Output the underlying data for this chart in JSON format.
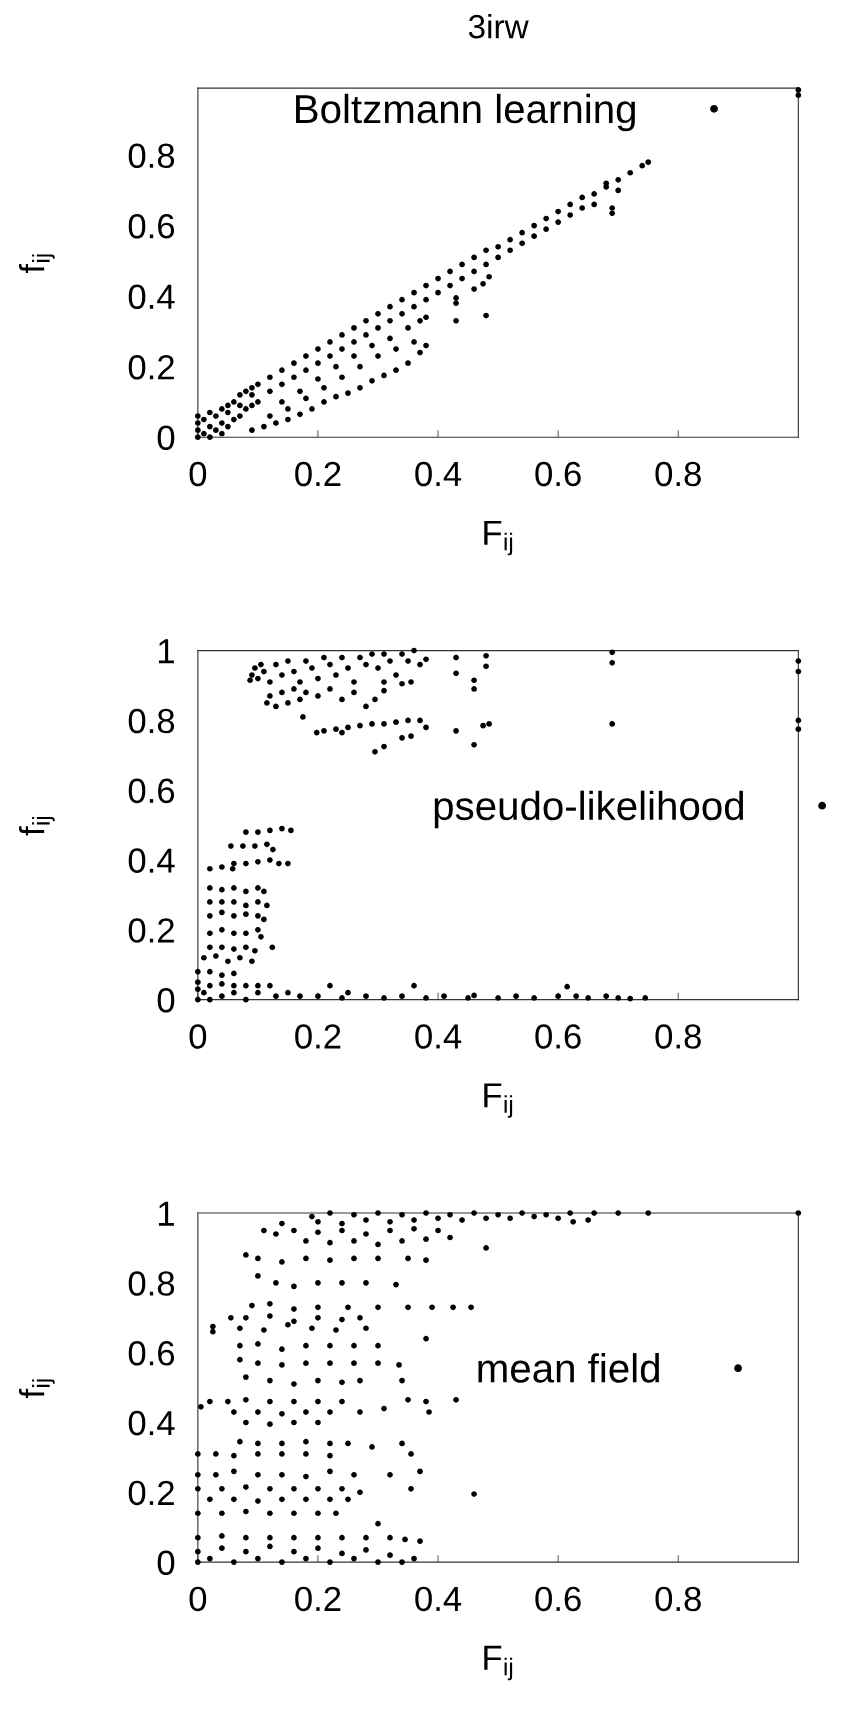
{
  "chart_data": [
    {
      "type": "scatter",
      "title": "3irw",
      "xlabel": "F$_{ij}$",
      "ylabel": "f$_{ij}$",
      "xlim": [
        0,
        1
      ],
      "ylim": [
        0,
        0.99
      ],
      "xticks": [
        0,
        0.2,
        0.4,
        0.6,
        0.8
      ],
      "yticks": [
        0,
        0.2,
        0.4,
        0.6,
        0.8
      ],
      "legend": "top right",
      "marker": "circle",
      "series": [
        {
          "name": "Boltzmann learning",
          "color": "#000000",
          "x": [
            0,
            0,
            0,
            0,
            0.01,
            0.01,
            0.02,
            0.02,
            0.02,
            0.03,
            0.03,
            0.04,
            0.04,
            0.04,
            0.05,
            0.05,
            0.05,
            0.06,
            0.06,
            0.07,
            0.07,
            0.07,
            0.08,
            0.08,
            0.09,
            0.09,
            0.09,
            0.1,
            0.1,
            0.12,
            0.12,
            0.14,
            0.14,
            0.16,
            0.16,
            0.18,
            0.18,
            0.2,
            0.2,
            0.22,
            0.22,
            0.24,
            0.24,
            0.26,
            0.26,
            0.28,
            0.28,
            0.3,
            0.3,
            0.32,
            0.32,
            0.34,
            0.34,
            0.36,
            0.36,
            0.38,
            0.38,
            0.4,
            0.4,
            0.42,
            0.42,
            0.44,
            0.44,
            0.46,
            0.46,
            0.48,
            0.48,
            0.5,
            0.5,
            0.52,
            0.52,
            0.54,
            0.54,
            0.56,
            0.56,
            0.58,
            0.58,
            0.6,
            0.6,
            0.62,
            0.62,
            0.64,
            0.64,
            0.66,
            0.66,
            0.68,
            0.7,
            0.72,
            0.74,
            0.75,
            0.09,
            0.11,
            0.13,
            0.15,
            0.17,
            0.19,
            0.21,
            0.23,
            0.25,
            0.27,
            0.29,
            0.31,
            0.33,
            0.35,
            0.37,
            0.38,
            0.12,
            0.15,
            0.18,
            0.21,
            0.24,
            0.27,
            0.3,
            0.33,
            0.36,
            0.14,
            0.17,
            0.2,
            0.23,
            0.26,
            0.29,
            0.32,
            0.35,
            0.37,
            0.38,
            0.68,
            0.69,
            0.69,
            0.7,
            0.43,
            0.43,
            0.43,
            0.46,
            0.475,
            0.485,
            0.48,
            1,
            1
          ],
          "values": [
            0,
            0.02,
            0.04,
            0.06,
            0.01,
            0.05,
            0,
            0.03,
            0.07,
            0.02,
            0.06,
            0.01,
            0.04,
            0.08,
            0.03,
            0.07,
            0.09,
            0.05,
            0.1,
            0.06,
            0.09,
            0.12,
            0.08,
            0.13,
            0.09,
            0.12,
            0.14,
            0.1,
            0.15,
            0.13,
            0.17,
            0.15,
            0.19,
            0.17,
            0.21,
            0.19,
            0.23,
            0.21,
            0.25,
            0.23,
            0.27,
            0.25,
            0.29,
            0.27,
            0.31,
            0.29,
            0.33,
            0.31,
            0.35,
            0.33,
            0.37,
            0.35,
            0.39,
            0.37,
            0.41,
            0.39,
            0.43,
            0.41,
            0.45,
            0.43,
            0.47,
            0.45,
            0.49,
            0.47,
            0.51,
            0.49,
            0.53,
            0.51,
            0.54,
            0.53,
            0.56,
            0.55,
            0.58,
            0.57,
            0.6,
            0.59,
            0.62,
            0.61,
            0.64,
            0.63,
            0.66,
            0.65,
            0.68,
            0.66,
            0.69,
            0.71,
            0.73,
            0.75,
            0.77,
            0.78,
            0.02,
            0.03,
            0.04,
            0.05,
            0.065,
            0.08,
            0.1,
            0.115,
            0.125,
            0.14,
            0.16,
            0.175,
            0.19,
            0.21,
            0.24,
            0.26,
            0.06,
            0.08,
            0.11,
            0.14,
            0.17,
            0.2,
            0.23,
            0.25,
            0.27,
            0.1,
            0.13,
            0.165,
            0.2,
            0.23,
            0.26,
            0.28,
            0.31,
            0.33,
            0.34,
            0.72,
            0.65,
            0.635,
            0.7,
            0.395,
            0.38,
            0.33,
            0.42,
            0.435,
            0.455,
            0.345,
            0.985,
            0.97
          ]
        }
      ]
    },
    {
      "type": "scatter",
      "xlabel": "F$_{ij}$",
      "ylabel": "f$_{ij}$",
      "xlim": [
        0,
        1
      ],
      "ylim": [
        0,
        1
      ],
      "xticks": [
        0,
        0.2,
        0.4,
        0.6,
        0.8
      ],
      "yticks": [
        0,
        0.2,
        0.4,
        0.6,
        0.8,
        1
      ],
      "legend": "right",
      "marker": "circle",
      "series": [
        {
          "name": "pseudo-likelihood",
          "color": "#000000",
          "x": [
            0.087,
            0.09,
            0.095,
            0.1,
            0.105,
            0.11,
            0.12,
            0.13,
            0.14,
            0.15,
            0.16,
            0.17,
            0.18,
            0.19,
            0.2,
            0.21,
            0.22,
            0.23,
            0.24,
            0.25,
            0.26,
            0.27,
            0.28,
            0.29,
            0.3,
            0.31,
            0.32,
            0.33,
            0.34,
            0.35,
            0.36,
            0.37,
            0.38,
            0.355,
            0.31,
            0.115,
            0.12,
            0.13,
            0.14,
            0.15,
            0.16,
            0.17,
            0.18,
            0.2,
            0.22,
            0.24,
            0.26,
            0.175,
            0.28,
            0.295,
            0.31,
            0.34,
            0.198,
            0.21,
            0.23,
            0.25,
            0.27,
            0.29,
            0.31,
            0.33,
            0.35,
            0.37,
            0.24,
            0.38,
            0.295,
            0.31,
            0.34,
            0.355,
            0.43,
            0.43,
            0.46,
            0.46,
            0.48,
            0.48,
            0.43,
            0.46,
            0.475,
            0.485,
            0.69,
            0.69,
            0.69,
            1,
            1,
            1,
            1,
            0.08,
            0.1,
            0.12,
            0.14,
            0.155,
            0.055,
            0.075,
            0.095,
            0.115,
            0.125,
            0.06,
            0.08,
            0.1,
            0.12,
            0.135,
            0.15,
            0.02,
            0.04,
            0.058,
            0.02,
            0.04,
            0.06,
            0.08,
            0.1,
            0.11,
            0.02,
            0.04,
            0.06,
            0.08,
            0.1,
            0.115,
            0.02,
            0.04,
            0.06,
            0.08,
            0.1,
            0.11,
            0.02,
            0.04,
            0.06,
            0.08,
            0.1,
            0.105,
            0.02,
            0.04,
            0.06,
            0.08,
            0.095,
            0.124,
            0.01,
            0.03,
            0.05,
            0.07,
            0.09,
            0,
            0.02,
            0.04,
            0.06,
            0,
            0,
            0,
            0.01,
            0.02,
            0.02,
            0.04,
            0.04,
            0.06,
            0.06,
            0.08,
            0.08,
            0.1,
            0.1,
            0.12,
            0.13,
            0.15,
            0.17,
            0.2,
            0.22,
            0.24,
            0.25,
            0.28,
            0.31,
            0.34,
            0.36,
            0.38,
            0.41,
            0.45,
            0.46,
            0.5,
            0.53,
            0.56,
            0.6,
            0.615,
            0.63,
            0.65,
            0.68,
            0.7,
            0.72,
            0.745
          ],
          "values": [
            0.915,
            0.93,
            0.95,
            0.92,
            0.96,
            0.94,
            0.91,
            0.96,
            0.93,
            0.97,
            0.94,
            0.91,
            0.97,
            0.95,
            0.92,
            0.98,
            0.96,
            0.93,
            0.98,
            0.95,
            0.91,
            0.98,
            0.96,
            0.99,
            0.95,
            0.99,
            0.97,
            0.93,
            0.99,
            0.97,
            1,
            0.96,
            0.975,
            0.91,
            0.91,
            0.85,
            0.87,
            0.84,
            0.88,
            0.85,
            0.89,
            0.86,
            0.88,
            0.87,
            0.89,
            0.86,
            0.88,
            0.81,
            0.84,
            0.86,
            0.885,
            0.905,
            0.765,
            0.77,
            0.775,
            0.78,
            0.785,
            0.79,
            0.79,
            0.795,
            0.8,
            0.8,
            0.765,
            0.78,
            0.71,
            0.725,
            0.75,
            0.755,
            0.98,
            0.935,
            0.915,
            0.89,
            0.985,
            0.955,
            0.77,
            0.73,
            0.785,
            0.79,
            0.995,
            0.965,
            0.79,
            0.97,
            0.94,
            0.8,
            0.775,
            0.48,
            0.48,
            0.485,
            0.49,
            0.485,
            0.44,
            0.44,
            0.44,
            0.445,
            0.43,
            0.39,
            0.39,
            0.395,
            0.4,
            0.39,
            0.39,
            0.375,
            0.38,
            0.375,
            0.32,
            0.315,
            0.32,
            0.31,
            0.32,
            0.31,
            0.28,
            0.28,
            0.28,
            0.27,
            0.28,
            0.27,
            0.24,
            0.25,
            0.24,
            0.245,
            0.24,
            0.23,
            0.19,
            0.2,
            0.19,
            0.19,
            0.2,
            0.18,
            0.15,
            0.15,
            0.145,
            0.15,
            0.14,
            0.15,
            0.12,
            0.125,
            0.11,
            0.12,
            0.11,
            0.08,
            0.08,
            0.07,
            0.075,
            0,
            0.03,
            0.05,
            0.02,
            0,
            0.04,
            0.01,
            0.045,
            0.02,
            0.04,
            0,
            0.04,
            0.02,
            0.04,
            0.04,
            0.01,
            0.02,
            0.01,
            0.01,
            0.04,
            0.005,
            0.02,
            0.01,
            0.005,
            0.01,
            0.04,
            0.005,
            0.01,
            0.005,
            0.012,
            0.005,
            0.01,
            0.005,
            0.01,
            0.037,
            0.01,
            0.005,
            0.01,
            0.005,
            0.003,
            0.005
          ]
        }
      ]
    },
    {
      "type": "scatter",
      "xlabel": "F$_{ij}$",
      "ylabel": "f$_{ij}$",
      "xlim": [
        0,
        1
      ],
      "ylim": [
        0,
        1
      ],
      "xticks": [
        0,
        0.2,
        0.4,
        0.6,
        0.8
      ],
      "yticks": [
        0,
        0.2,
        0.4,
        0.6,
        0.8,
        1
      ],
      "legend": "right",
      "marker": "circle",
      "series": [
        {
          "name": "mean field",
          "color": "#000000",
          "x": [
            0.19,
            0.22,
            0.26,
            0.3,
            0.34,
            0.38,
            0.42,
            0.46,
            0.5,
            0.54,
            0.58,
            0.62,
            0.66,
            0.7,
            0.75,
            1,
            0.14,
            0.2,
            0.24,
            0.28,
            0.32,
            0.36,
            0.4,
            0.44,
            0.48,
            0.52,
            0.56,
            0.6,
            0.625,
            0.65,
            0.11,
            0.13,
            0.16,
            0.2,
            0.24,
            0.28,
            0.32,
            0.36,
            0.4,
            0.18,
            0.22,
            0.26,
            0.3,
            0.34,
            0.38,
            0.42,
            0.48,
            0.08,
            0.1,
            0.14,
            0.18,
            0.22,
            0.26,
            0.3,
            0.35,
            0.38,
            0.1,
            0.13,
            0.16,
            0.2,
            0.24,
            0.28,
            0.33,
            0.09,
            0.12,
            0.16,
            0.2,
            0.25,
            0.3,
            0.35,
            0.39,
            0.425,
            0.455,
            0.055,
            0.08,
            0.12,
            0.16,
            0.2,
            0.24,
            0.27,
            0.025,
            0.025,
            0.07,
            0.11,
            0.15,
            0.19,
            0.23,
            0.28,
            0.07,
            0.1,
            0.14,
            0.18,
            0.22,
            0.26,
            0.3,
            0.38,
            0.07,
            0.1,
            0.14,
            0.18,
            0.22,
            0.26,
            0.3,
            0.335,
            0.08,
            0.12,
            0.16,
            0.2,
            0.24,
            0.27,
            0.34,
            0.005,
            0.02,
            0.05,
            0.08,
            0.12,
            0.16,
            0.2,
            0.24,
            0.35,
            0.43,
            0.38,
            0.06,
            0.1,
            0.14,
            0.18,
            0.22,
            0.27,
            0.31,
            0.385,
            0.08,
            0.12,
            0.16,
            0.2,
            0.07,
            0.1,
            0.14,
            0.18,
            0.22,
            0.25,
            0.34,
            0.29,
            0,
            0.03,
            0.06,
            0.1,
            0.14,
            0.18,
            0.22,
            0.355,
            0,
            0.03,
            0.06,
            0.1,
            0.14,
            0.18,
            0.22,
            0.26,
            0.32,
            0.37,
            0,
            0.04,
            0.08,
            0.12,
            0.16,
            0.2,
            0.24,
            0.27,
            0.355,
            0.46,
            0.02,
            0.06,
            0.1,
            0.14,
            0.18,
            0.22,
            0.25,
            0,
            0.04,
            0.08,
            0.12,
            0.16,
            0.2,
            0.23,
            0.3,
            0,
            0.04,
            0.08,
            0.12,
            0.16,
            0.2,
            0.24,
            0.28,
            0.32,
            0.345,
            0,
            0,
            0.02,
            0.04,
            0.06,
            0.08,
            0.1,
            0.12,
            0.14,
            0.16,
            0.18,
            0.2,
            0.22,
            0.24,
            0.26,
            0.28,
            0.3,
            0.32,
            0.34,
            0.36,
            0.37
          ],
          "values": [
            0.99,
            1,
            0.995,
            1,
            0.995,
            1,
            0.995,
            1,
            0.995,
            1,
            0.995,
            1,
            1,
            1,
            1,
            1,
            0.97,
            0.975,
            0.97,
            0.98,
            0.975,
            0.98,
            0.985,
            0.98,
            0.985,
            0.985,
            0.99,
            0.985,
            0.975,
            0.98,
            0.95,
            0.94,
            0.95,
            0.945,
            0.95,
            0.94,
            0.95,
            0.955,
            0.95,
            0.92,
            0.915,
            0.92,
            0.91,
            0.92,
            0.925,
            0.93,
            0.9,
            0.88,
            0.87,
            0.86,
            0.87,
            0.865,
            0.87,
            0.87,
            0.87,
            0.865,
            0.82,
            0.8,
            0.79,
            0.8,
            0.8,
            0.8,
            0.795,
            0.735,
            0.74,
            0.725,
            0.73,
            0.73,
            0.73,
            0.73,
            0.73,
            0.73,
            0.73,
            0.7,
            0.7,
            0.705,
            0.69,
            0.7,
            0.695,
            0.7,
            0.675,
            0.66,
            0.67,
            0.665,
            0.68,
            0.67,
            0.665,
            0.67,
            0.62,
            0.625,
            0.61,
            0.62,
            0.62,
            0.62,
            0.62,
            0.64,
            0.58,
            0.57,
            0.565,
            0.57,
            0.57,
            0.57,
            0.57,
            0.565,
            0.53,
            0.52,
            0.51,
            0.52,
            0.515,
            0.52,
            0.52,
            0.445,
            0.46,
            0.46,
            0.465,
            0.46,
            0.46,
            0.46,
            0.46,
            0.465,
            0.465,
            0.46,
            0.43,
            0.43,
            0.425,
            0.43,
            0.43,
            0.43,
            0.44,
            0.43,
            0.4,
            0.395,
            0.4,
            0.4,
            0.345,
            0.34,
            0.34,
            0.345,
            0.34,
            0.34,
            0.34,
            0.33,
            0.31,
            0.31,
            0.305,
            0.31,
            0.31,
            0.31,
            0.305,
            0.31,
            0.25,
            0.25,
            0.26,
            0.25,
            0.25,
            0.245,
            0.26,
            0.25,
            0.25,
            0.26,
            0.21,
            0.21,
            0.215,
            0.21,
            0.21,
            0.21,
            0.21,
            0.2,
            0.21,
            0.195,
            0.18,
            0.18,
            0.175,
            0.18,
            0.18,
            0.18,
            0.18,
            0.14,
            0.14,
            0.145,
            0.14,
            0.14,
            0.14,
            0.14,
            0.11,
            0.07,
            0.075,
            0.07,
            0.07,
            0.07,
            0.07,
            0.07,
            0.07,
            0.07,
            0.065,
            0,
            0.03,
            0.01,
            0.04,
            0,
            0.03,
            0.01,
            0.045,
            0,
            0.03,
            0.01,
            0.04,
            0,
            0.025,
            0.01,
            0.035,
            0,
            0.02,
            0,
            0.01,
            0.06
          ]
        }
      ]
    }
  ]
}
